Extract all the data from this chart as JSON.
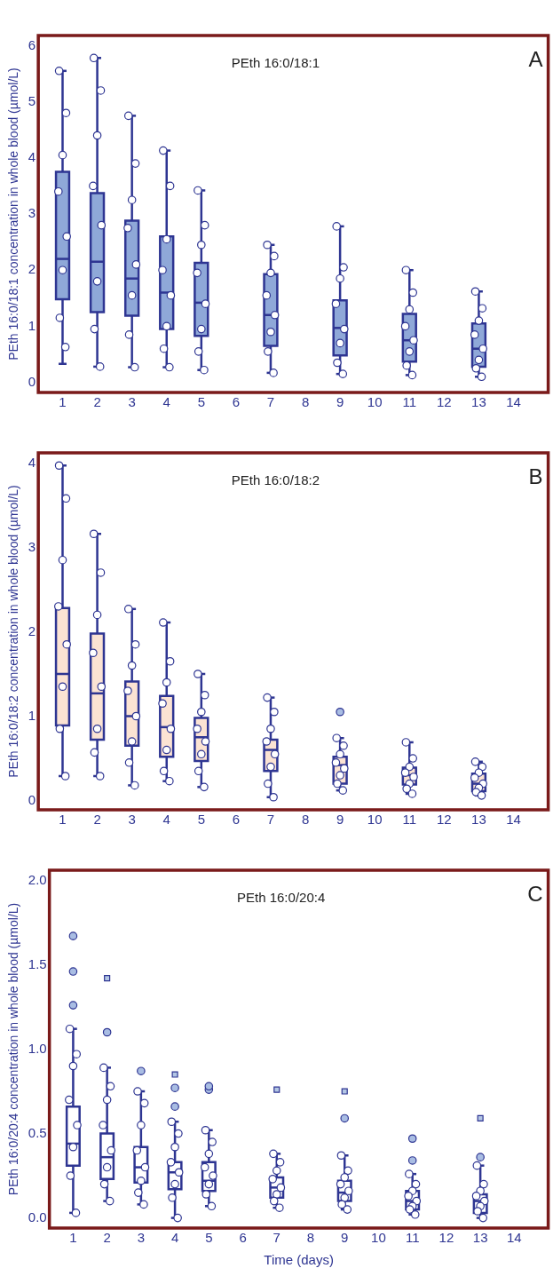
{
  "chart_data": [
    {
      "type": "box",
      "title": "PEth 16:0/18:1",
      "ylabel": "PEth 16:0/18:1 concentration in whole blood (µmol/L)",
      "annotations": [
        "A"
      ],
      "x": [
        1,
        2,
        3,
        4,
        5,
        7,
        9,
        11,
        13
      ],
      "xlim": [
        0.3,
        15
      ],
      "xticks": [
        1,
        2,
        3,
        4,
        5,
        6,
        7,
        8,
        9,
        10,
        11,
        12,
        13,
        14
      ],
      "ylim": [
        -0.18,
        6.18
      ],
      "yticks": [
        0,
        1,
        2,
        3,
        4,
        5,
        6
      ],
      "series": [
        {
          "type": "box",
          "color": "#8fa8d8",
          "boxes": [
            {
              "low": 0.33,
              "q1": 1.48,
              "median": 2.2,
              "q3": 3.75,
              "high": 5.55
            },
            {
              "low": 0.28,
              "q1": 1.25,
              "median": 2.15,
              "q3": 3.37,
              "high": 5.78
            },
            {
              "low": 0.27,
              "q1": 1.19,
              "median": 1.85,
              "q3": 2.88,
              "high": 4.75
            },
            {
              "low": 0.27,
              "q1": 0.95,
              "median": 1.6,
              "q3": 2.6,
              "high": 4.13
            },
            {
              "low": 0.22,
              "q1": 0.83,
              "median": 1.42,
              "q3": 2.13,
              "high": 3.42
            },
            {
              "low": 0.17,
              "q1": 0.65,
              "median": 1.2,
              "q3": 1.93,
              "high": 2.45
            },
            {
              "low": 0.15,
              "q1": 0.48,
              "median": 0.97,
              "q3": 1.46,
              "high": 2.78
            },
            {
              "low": 0.13,
              "q1": 0.37,
              "median": 0.75,
              "q3": 1.22,
              "high": 2.0
            },
            {
              "low": 0.1,
              "q1": 0.28,
              "median": 0.6,
              "q3": 1.05,
              "high": 1.62
            }
          ]
        },
        {
          "type": "scatter",
          "color": "#ffffff",
          "x": [
            0.9,
            1.1,
            1,
            0.88,
            1.12,
            1,
            0.92,
            1.08,
            1.9,
            2.1,
            2,
            1.88,
            2.12,
            2,
            1.92,
            2.08,
            2.9,
            3.1,
            3,
            2.88,
            3.12,
            3,
            2.92,
            3.08,
            3.9,
            4.1,
            4,
            3.88,
            4.12,
            4,
            3.92,
            4.08,
            4.9,
            5.1,
            5,
            4.88,
            5.12,
            5,
            4.92,
            5.08,
            6.9,
            7.1,
            7,
            6.88,
            7.12,
            7,
            6.92,
            7.08,
            8.9,
            9.1,
            9,
            8.88,
            9.12,
            9,
            8.92,
            9.08,
            10.9,
            11.1,
            11,
            10.88,
            11.12,
            11,
            10.92,
            11.08,
            12.9,
            13.1,
            13,
            12.88,
            13.12,
            13,
            12.92,
            13.08
          ],
          "values": [
            5.55,
            4.8,
            4.05,
            3.4,
            2.6,
            2.0,
            1.15,
            0.63,
            5.78,
            5.2,
            4.4,
            3.5,
            2.8,
            1.8,
            0.95,
            0.28,
            4.75,
            3.9,
            3.25,
            2.75,
            2.1,
            1.55,
            0.85,
            0.27,
            4.13,
            3.5,
            2.55,
            2.0,
            1.55,
            1.0,
            0.6,
            0.27,
            3.42,
            2.8,
            2.45,
            1.95,
            1.4,
            0.95,
            0.55,
            0.22,
            2.45,
            2.25,
            1.95,
            1.55,
            1.2,
            0.9,
            0.55,
            0.17,
            2.78,
            2.05,
            1.85,
            1.4,
            0.95,
            0.7,
            0.35,
            0.15,
            2.0,
            1.6,
            1.3,
            1.0,
            0.75,
            0.55,
            0.3,
            0.13,
            1.62,
            1.32,
            1.1,
            0.85,
            0.6,
            0.4,
            0.25,
            0.1
          ]
        }
      ]
    },
    {
      "type": "box",
      "title": "PEth 16:0/18:2",
      "ylabel": "PEth 16:0/18:2 concentration in whole blood (µmol/L)",
      "annotations": [
        "B"
      ],
      "x": [
        1,
        2,
        3,
        4,
        5,
        7,
        9,
        11,
        13
      ],
      "xlim": [
        0.3,
        15
      ],
      "xticks": [
        1,
        2,
        3,
        4,
        5,
        6,
        7,
        8,
        9,
        10,
        11,
        12,
        13,
        14
      ],
      "ylim": [
        -0.11,
        4.12
      ],
      "yticks": [
        0,
        1,
        2,
        3,
        4
      ],
      "series": [
        {
          "type": "box",
          "color": "#fbe3d3",
          "boxes": [
            {
              "low": 0.29,
              "q1": 0.89,
              "median": 1.5,
              "q3": 2.28,
              "high": 3.97
            },
            {
              "low": 0.29,
              "q1": 0.72,
              "median": 1.27,
              "q3": 1.98,
              "high": 3.16
            },
            {
              "low": 0.18,
              "q1": 0.65,
              "median": 1.0,
              "q3": 1.41,
              "high": 2.27
            },
            {
              "low": 0.23,
              "q1": 0.52,
              "median": 0.87,
              "q3": 1.24,
              "high": 2.11
            },
            {
              "low": 0.16,
              "q1": 0.47,
              "median": 0.75,
              "q3": 0.98,
              "high": 1.5
            },
            {
              "low": 0.04,
              "q1": 0.35,
              "median": 0.6,
              "q3": 0.72,
              "high": 1.22
            },
            {
              "low": 0.12,
              "q1": 0.2,
              "median": 0.42,
              "q3": 0.52,
              "high": 0.74,
              "outliers": [
                1.05
              ]
            },
            {
              "low": 0.08,
              "q1": 0.19,
              "median": 0.3,
              "q3": 0.39,
              "high": 0.69
            },
            {
              "low": 0.06,
              "q1": 0.11,
              "median": 0.2,
              "q3": 0.32,
              "high": 0.46
            }
          ]
        },
        {
          "type": "scatter",
          "color": "#ffffff",
          "x": [
            0.9,
            1.1,
            1,
            0.88,
            1.12,
            1,
            0.92,
            1.08,
            1.9,
            2.1,
            2,
            1.88,
            2.12,
            2,
            1.92,
            2.08,
            2.9,
            3.1,
            3,
            2.88,
            3.12,
            3,
            2.92,
            3.08,
            3.9,
            4.1,
            4,
            3.88,
            4.12,
            4,
            3.92,
            4.08,
            4.9,
            5.1,
            5,
            4.88,
            5.12,
            5,
            4.92,
            5.08,
            6.9,
            7.1,
            7,
            6.88,
            7.12,
            7,
            6.92,
            7.08,
            8.9,
            9.1,
            9,
            8.88,
            9.12,
            9,
            8.92,
            9.08,
            10.9,
            11.1,
            11,
            10.88,
            11.12,
            11,
            10.92,
            11.08,
            12.9,
            13.1,
            13,
            12.88,
            13.12,
            13,
            12.92,
            13.08
          ],
          "values": [
            3.97,
            3.58,
            2.85,
            2.3,
            1.85,
            1.35,
            0.85,
            0.29,
            3.16,
            2.7,
            2.2,
            1.75,
            1.35,
            0.85,
            0.57,
            0.29,
            2.27,
            1.85,
            1.6,
            1.3,
            1.0,
            0.7,
            0.45,
            0.18,
            2.11,
            1.65,
            1.4,
            1.15,
            0.85,
            0.6,
            0.35,
            0.23,
            1.5,
            1.25,
            1.05,
            0.85,
            0.7,
            0.55,
            0.35,
            0.16,
            1.22,
            1.05,
            0.85,
            0.7,
            0.55,
            0.4,
            0.2,
            0.04,
            0.74,
            0.65,
            0.55,
            0.45,
            0.38,
            0.3,
            0.2,
            0.12,
            0.69,
            0.5,
            0.4,
            0.33,
            0.28,
            0.2,
            0.14,
            0.08,
            0.46,
            0.4,
            0.33,
            0.27,
            0.2,
            0.15,
            0.1,
            0.06
          ]
        }
      ]
    },
    {
      "type": "box",
      "title": "PEth 16:0/20:4",
      "ylabel": "PEth 16:0/20:4 concentration in whole blood (µmol/L)",
      "xlabel": "Time (days)",
      "annotations": [
        "C"
      ],
      "x": [
        1,
        2,
        3,
        4,
        5,
        7,
        9,
        11,
        13
      ],
      "xlim": [
        0.3,
        15
      ],
      "xticks": [
        1,
        2,
        3,
        4,
        5,
        6,
        7,
        8,
        9,
        10,
        11,
        12,
        13,
        14
      ],
      "ylim": [
        -0.06,
        2.06
      ],
      "yticks": [
        {
          "value": 0,
          "label": "0.0"
        },
        {
          "value": 0.5,
          "label": "0.5"
        },
        {
          "value": 1,
          "label": "1.0"
        },
        {
          "value": 1.5,
          "label": "1.5"
        },
        {
          "value": 2,
          "label": "2.0"
        }
      ],
      "series": [
        {
          "type": "box",
          "color": "#ffffff",
          "boxes": [
            {
              "low": 0.03,
              "q1": 0.31,
              "median": 0.44,
              "q3": 0.66,
              "high": 1.12,
              "outliers": [
                1.26,
                1.46,
                1.67
              ]
            },
            {
              "low": 0.1,
              "q1": 0.23,
              "median": 0.36,
              "q3": 0.5,
              "high": 0.89,
              "outliers": [
                1.1
              ]
            },
            {
              "low": 0.08,
              "q1": 0.21,
              "median": 0.3,
              "q3": 0.42,
              "high": 0.75,
              "outliers": [
                0.87
              ]
            },
            {
              "low": 0.0,
              "q1": 0.17,
              "median": 0.27,
              "q3": 0.33,
              "high": 0.57,
              "outliers": [
                0.66,
                0.77
              ]
            },
            {
              "low": 0.07,
              "q1": 0.16,
              "median": 0.22,
              "q3": 0.33,
              "high": 0.52,
              "outliers": [
                0.76,
                0.78
              ]
            },
            {
              "low": 0.06,
              "q1": 0.12,
              "median": 0.18,
              "q3": 0.24,
              "high": 0.38
            },
            {
              "low": 0.05,
              "q1": 0.1,
              "median": 0.15,
              "q3": 0.22,
              "high": 0.37,
              "outliers": [
                0.59
              ]
            },
            {
              "low": 0.02,
              "q1": 0.05,
              "median": 0.1,
              "q3": 0.16,
              "high": 0.26,
              "outliers": [
                0.34,
                0.47
              ]
            },
            {
              "low": 0.0,
              "q1": 0.03,
              "median": 0.1,
              "q3": 0.14,
              "high": 0.31,
              "outliers": [
                0.36
              ]
            }
          ]
        },
        {
          "type": "scatter",
          "color": "#ffffff",
          "x": [
            0.9,
            1.1,
            1,
            0.88,
            1.12,
            1,
            0.92,
            1.08,
            1.9,
            2.1,
            2,
            1.88,
            2.12,
            2,
            1.92,
            2.08,
            2.9,
            3.1,
            3,
            2.88,
            3.12,
            3,
            2.92,
            3.08,
            3.9,
            4.1,
            4,
            3.88,
            4.12,
            4,
            3.92,
            4.08,
            4.9,
            5.1,
            5,
            4.88,
            5.12,
            5,
            4.92,
            5.08,
            6.9,
            7.1,
            7,
            6.88,
            7.12,
            7,
            6.92,
            7.08,
            8.9,
            9.1,
            9,
            8.88,
            9.12,
            9,
            8.92,
            9.08,
            10.9,
            11.1,
            11,
            10.88,
            11.12,
            11,
            10.92,
            11.08,
            12.9,
            13.1,
            13,
            12.88,
            13.12,
            13,
            12.92,
            13.08
          ],
          "values": [
            1.12,
            0.97,
            0.9,
            0.7,
            0.55,
            0.42,
            0.25,
            0.03,
            0.89,
            0.78,
            0.7,
            0.55,
            0.4,
            0.3,
            0.2,
            0.1,
            0.75,
            0.68,
            0.55,
            0.4,
            0.3,
            0.22,
            0.15,
            0.08,
            0.57,
            0.5,
            0.42,
            0.33,
            0.27,
            0.2,
            0.12,
            0.0,
            0.52,
            0.45,
            0.38,
            0.3,
            0.25,
            0.2,
            0.14,
            0.07,
            0.38,
            0.33,
            0.28,
            0.23,
            0.18,
            0.14,
            0.1,
            0.06,
            0.37,
            0.28,
            0.24,
            0.2,
            0.16,
            0.12,
            0.08,
            0.05,
            0.26,
            0.2,
            0.16,
            0.13,
            0.1,
            0.07,
            0.05,
            0.02,
            0.31,
            0.2,
            0.16,
            0.13,
            0.1,
            0.07,
            0.04,
            0.0
          ]
        },
        {
          "type": "scatter",
          "marker": "square",
          "color": "#b3c6e4",
          "x": [
            2,
            4,
            7,
            9,
            13
          ],
          "values": [
            1.42,
            0.85,
            0.76,
            0.75,
            0.59
          ]
        }
      ]
    }
  ]
}
